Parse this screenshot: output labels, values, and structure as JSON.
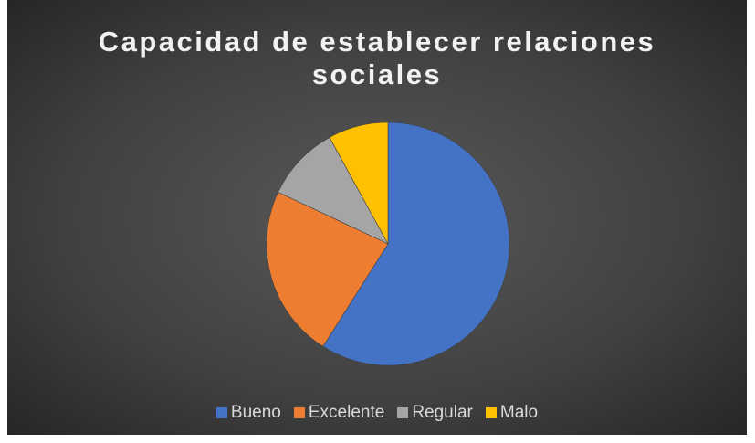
{
  "chart_data": {
    "type": "pie",
    "title": "Capacidad de establecer relaciones sociales",
    "categories": [
      "Bueno",
      "Excelente",
      "Regular",
      "Malo"
    ],
    "values": [
      59,
      23,
      10,
      8
    ],
    "colors": [
      "#4472c4",
      "#ed7d31",
      "#a5a5a5",
      "#ffc000"
    ],
    "legend": "bottom"
  }
}
